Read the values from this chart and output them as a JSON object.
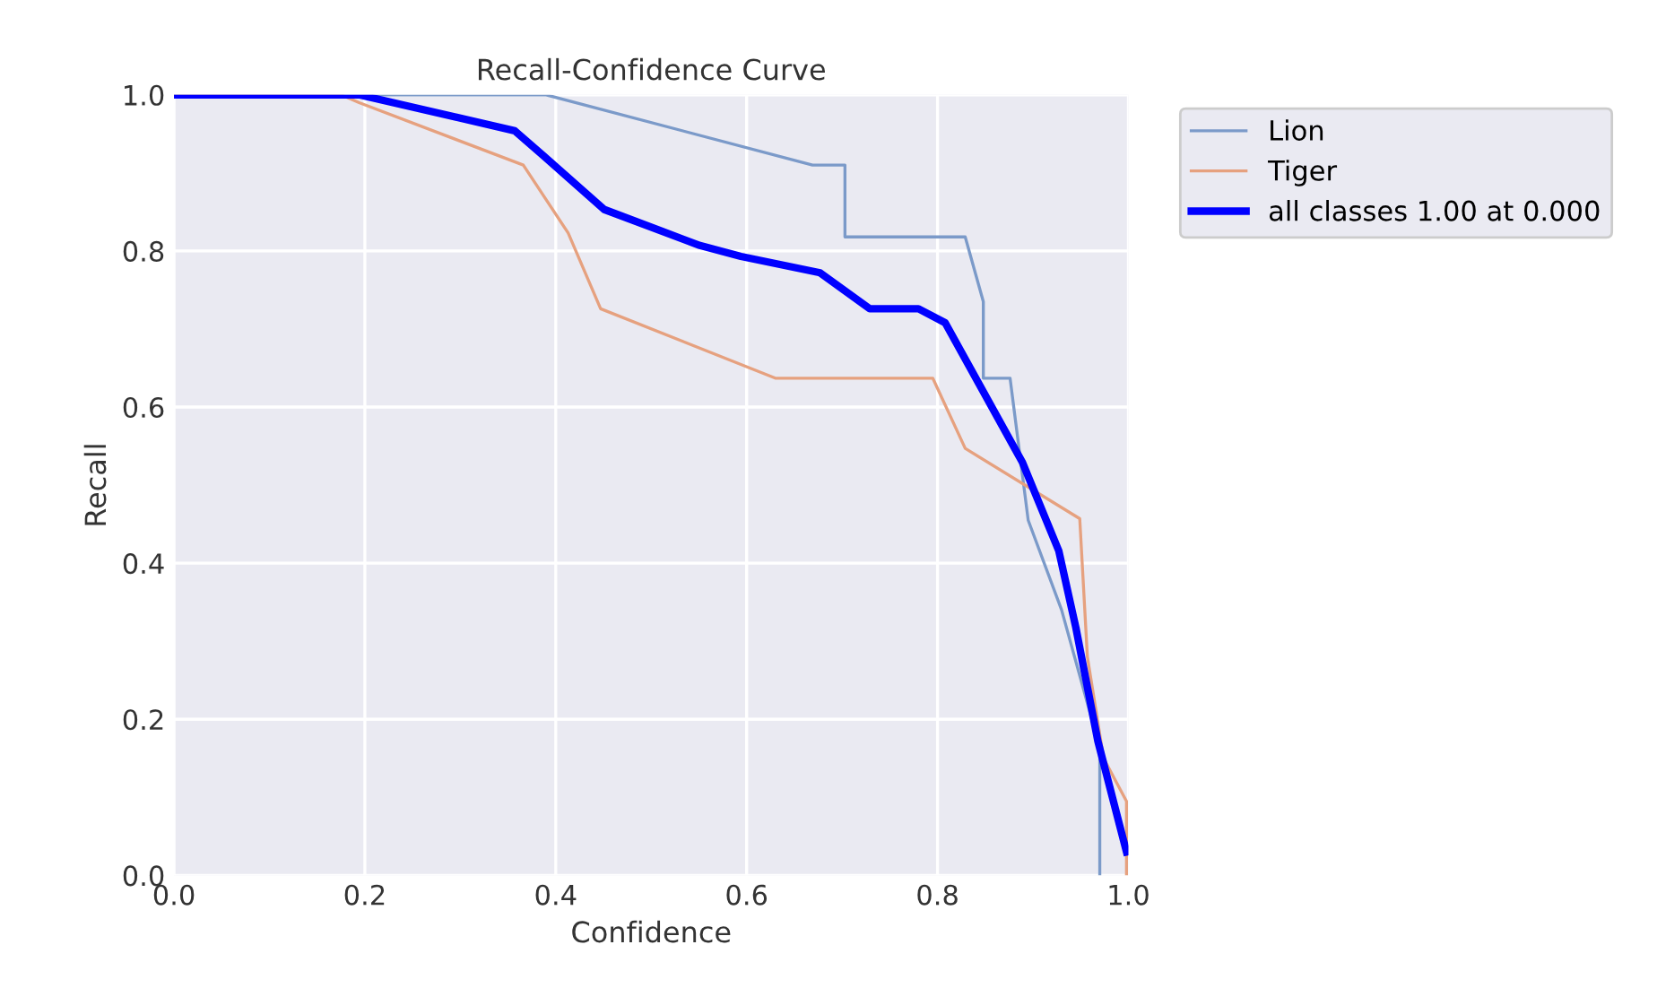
{
  "chart_data": {
    "type": "line",
    "title": "Recall-Confidence Curve",
    "xlabel": "Confidence",
    "ylabel": "Recall",
    "xlim": [
      0.0,
      1.0
    ],
    "ylim": [
      0.0,
      1.0
    ],
    "xticks": [
      {
        "value": 0,
        "label": "0.0"
      },
      0.2,
      0.4,
      0.6,
      0.8,
      {
        "value": 1,
        "label": "1.0"
      }
    ],
    "yticks": [
      {
        "value": 0,
        "label": "0.0"
      },
      0.2,
      0.4,
      0.6,
      0.8,
      {
        "value": 1,
        "label": "1.0"
      }
    ],
    "grid": true,
    "legend": "top right",
    "line_style": "solid",
    "series": [
      {
        "name": "Lion",
        "color": "#7b9ac9",
        "x": [
          0.0,
          0.39,
          0.669,
          0.703,
          0.703,
          0.829,
          0.848,
          0.848,
          0.876,
          0.895,
          0.93,
          0.97,
          0.97
        ],
        "values": [
          1.0,
          1.0,
          0.91,
          0.91,
          0.818,
          0.818,
          0.735,
          0.637,
          0.637,
          0.455,
          0.34,
          0.163,
          0.0
        ]
      },
      {
        "name": "Tiger",
        "color": "#e6a17f",
        "x": [
          0.0,
          0.175,
          0.194,
          0.366,
          0.413,
          0.447,
          0.63,
          0.795,
          0.829,
          0.949,
          0.957,
          0.974,
          0.998,
          0.998
        ],
        "values": [
          1.0,
          1.0,
          0.99,
          0.91,
          0.823,
          0.726,
          0.637,
          0.637,
          0.547,
          0.457,
          0.28,
          0.15,
          0.095,
          0.0
        ]
      },
      {
        "name": "all classes 1.00 at 0.000",
        "color": "#0000ff",
        "x": [
          0.0,
          0.194,
          0.357,
          0.387,
          0.451,
          0.551,
          0.594,
          0.677,
          0.729,
          0.78,
          0.808,
          0.889,
          0.927,
          0.945,
          0.968,
          0.998
        ],
        "values": [
          1.0,
          1.0,
          0.954,
          0.922,
          0.853,
          0.807,
          0.793,
          0.772,
          0.726,
          0.726,
          0.708,
          0.529,
          0.416,
          0.317,
          0.172,
          0.03
        ]
      }
    ]
  }
}
